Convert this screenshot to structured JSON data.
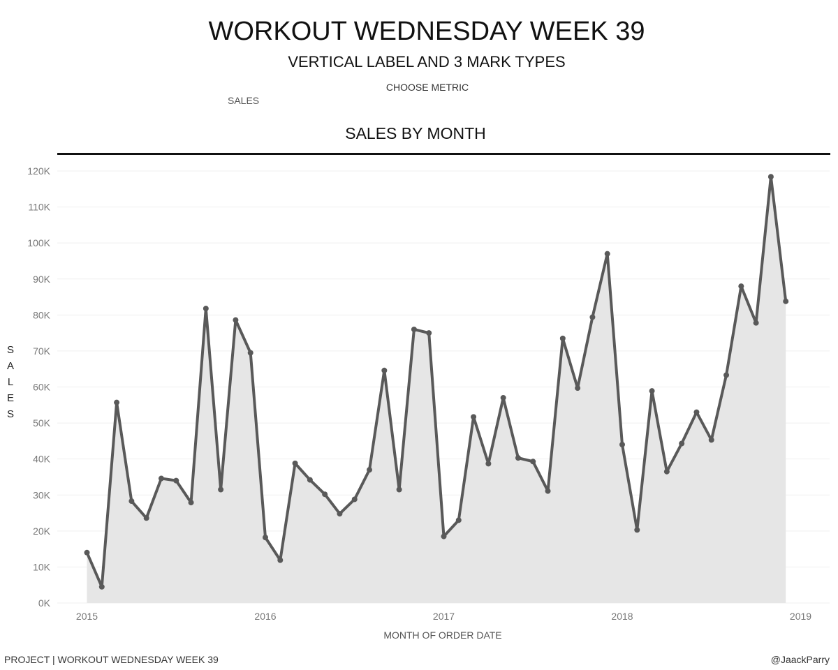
{
  "header": {
    "title": "WORKOUT WEDNESDAY WEEK 39",
    "subtitle": "VERTICAL LABEL AND 3 MARK TYPES"
  },
  "controls": {
    "choose_metric_label": "CHOOSE METRIC",
    "metric_value": "SALES"
  },
  "footer": {
    "left": "PROJECT | WORKOUT WEDNESDAY WEEK 39",
    "right": "@JaackParry"
  },
  "chart_data": {
    "type": "area",
    "title": "SALES BY MONTH",
    "xlabel": "MONTH OF ORDER DATE",
    "ylabel": "SALES",
    "ylabel_orientation": "vertical-stacked",
    "x_ticks": [
      "2015",
      "2016",
      "2017",
      "2018",
      "2019"
    ],
    "y_ticks": [
      "0K",
      "10K",
      "20K",
      "30K",
      "40K",
      "50K",
      "60K",
      "70K",
      "80K",
      "90K",
      "100K",
      "110K",
      "120K"
    ],
    "ylim": [
      0,
      120000
    ],
    "xlim": [
      "2015-01",
      "2019-01"
    ],
    "grid": "horizontal",
    "mark_types": [
      "line",
      "circle",
      "area"
    ],
    "colors": {
      "line": "#595959",
      "area": "#e6e6e6",
      "grid": "#efefef",
      "rule": "#111111"
    },
    "series": [
      {
        "months": [
          "2015-01",
          "2015-02",
          "2015-03",
          "2015-04",
          "2015-05",
          "2015-06",
          "2015-07",
          "2015-08",
          "2015-09",
          "2015-10",
          "2015-11",
          "2015-12",
          "2016-01",
          "2016-02",
          "2016-03",
          "2016-04",
          "2016-05",
          "2016-06",
          "2016-07",
          "2016-08",
          "2016-09",
          "2016-10",
          "2016-11",
          "2016-12",
          "2017-01",
          "2017-02",
          "2017-03",
          "2017-04",
          "2017-05",
          "2017-06",
          "2017-07",
          "2017-08",
          "2017-09",
          "2017-10",
          "2017-11",
          "2017-12",
          "2018-01",
          "2018-02",
          "2018-03",
          "2018-04",
          "2018-05",
          "2018-06",
          "2018-07",
          "2018-08",
          "2018-09",
          "2018-10",
          "2018-11",
          "2018-12"
        ],
        "values": [
          14000,
          4500,
          55700,
          28300,
          23600,
          34600,
          34000,
          27900,
          81800,
          31500,
          78600,
          69500,
          18200,
          11900,
          38800,
          34200,
          30200,
          24800,
          28800,
          37000,
          64600,
          31500,
          76000,
          75000,
          18500,
          23000,
          51700,
          38700,
          57000,
          40300,
          39300,
          31100,
          73500,
          59700,
          79400,
          97000,
          44000,
          20300,
          58900,
          36500,
          44300,
          53000,
          45300,
          63300,
          88000,
          77800,
          118400,
          83800
        ]
      }
    ]
  }
}
